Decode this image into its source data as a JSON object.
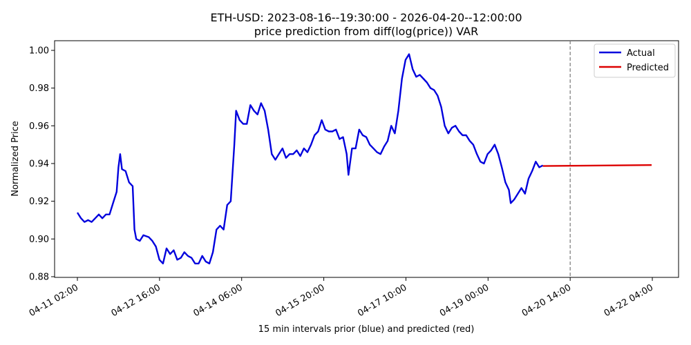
{
  "chart_data": {
    "type": "line",
    "title": "ETH-USD: 2023-08-16--19:30:00 - 2026-04-20--12:00:00",
    "subtitle": "price prediction from diff(log(price)) VAR",
    "xlabel": "15 min intervals prior (blue) and predicted (red)",
    "ylabel": "Normalized Price",
    "ylim": [
      0.88,
      1.0
    ],
    "y_ticks": [
      "0.88",
      "0.90",
      "0.92",
      "0.94",
      "0.96",
      "0.98",
      "1.00"
    ],
    "x_ticks": [
      "04-11 02:00",
      "04-12 16:00",
      "04-14 06:00",
      "04-15 20:00",
      "04-17 10:00",
      "04-19 00:00",
      "04-20 14:00",
      "04-22 04:00"
    ],
    "grid": false,
    "legend_position": "top-right",
    "divider_x": "04-20 14:00",
    "series": [
      {
        "name": "Actual",
        "color": "#0000dd",
        "points": [
          [
            0,
            0.914
          ],
          [
            2,
            0.911
          ],
          [
            4,
            0.909
          ],
          [
            6,
            0.91
          ],
          [
            8,
            0.909
          ],
          [
            10,
            0.911
          ],
          [
            12,
            0.913
          ],
          [
            14,
            0.911
          ],
          [
            16,
            0.913
          ],
          [
            18,
            0.913
          ],
          [
            20,
            0.919
          ],
          [
            22,
            0.925
          ],
          [
            23,
            0.938
          ],
          [
            24,
            0.945
          ],
          [
            25,
            0.937
          ],
          [
            27,
            0.936
          ],
          [
            29,
            0.93
          ],
          [
            31,
            0.928
          ],
          [
            32,
            0.905
          ],
          [
            33,
            0.9
          ],
          [
            35,
            0.899
          ],
          [
            37,
            0.902
          ],
          [
            40,
            0.901
          ],
          [
            42,
            0.899
          ],
          [
            44,
            0.896
          ],
          [
            46,
            0.889
          ],
          [
            48,
            0.887
          ],
          [
            50,
            0.895
          ],
          [
            52,
            0.892
          ],
          [
            54,
            0.894
          ],
          [
            56,
            0.889
          ],
          [
            58,
            0.89
          ],
          [
            60,
            0.893
          ],
          [
            62,
            0.891
          ],
          [
            64,
            0.89
          ],
          [
            66,
            0.887
          ],
          [
            68,
            0.887
          ],
          [
            70,
            0.891
          ],
          [
            72,
            0.888
          ],
          [
            74,
            0.887
          ],
          [
            76,
            0.893
          ],
          [
            78,
            0.905
          ],
          [
            80,
            0.907
          ],
          [
            82,
            0.905
          ],
          [
            84,
            0.918
          ],
          [
            86,
            0.92
          ],
          [
            88,
            0.95
          ],
          [
            89,
            0.968
          ],
          [
            91,
            0.963
          ],
          [
            93,
            0.961
          ],
          [
            95,
            0.961
          ],
          [
            97,
            0.971
          ],
          [
            99,
            0.968
          ],
          [
            101,
            0.966
          ],
          [
            103,
            0.972
          ],
          [
            105,
            0.968
          ],
          [
            107,
            0.958
          ],
          [
            109,
            0.945
          ],
          [
            111,
            0.942
          ],
          [
            113,
            0.945
          ],
          [
            115,
            0.948
          ],
          [
            117,
            0.943
          ],
          [
            119,
            0.945
          ],
          [
            121,
            0.945
          ],
          [
            123,
            0.947
          ],
          [
            125,
            0.944
          ],
          [
            127,
            0.948
          ],
          [
            129,
            0.946
          ],
          [
            131,
            0.95
          ],
          [
            133,
            0.955
          ],
          [
            135,
            0.957
          ],
          [
            137,
            0.963
          ],
          [
            139,
            0.958
          ],
          [
            141,
            0.957
          ],
          [
            143,
            0.957
          ],
          [
            145,
            0.958
          ],
          [
            147,
            0.953
          ],
          [
            149,
            0.954
          ],
          [
            151,
            0.945
          ],
          [
            152,
            0.934
          ],
          [
            154,
            0.948
          ],
          [
            156,
            0.948
          ],
          [
            158,
            0.958
          ],
          [
            160,
            0.955
          ],
          [
            162,
            0.954
          ],
          [
            164,
            0.95
          ],
          [
            166,
            0.948
          ],
          [
            168,
            0.946
          ],
          [
            170,
            0.945
          ],
          [
            172,
            0.949
          ],
          [
            174,
            0.952
          ],
          [
            176,
            0.96
          ],
          [
            178,
            0.956
          ],
          [
            180,
            0.968
          ],
          [
            182,
            0.985
          ],
          [
            184,
            0.995
          ],
          [
            186,
            0.998
          ],
          [
            188,
            0.99
          ],
          [
            190,
            0.986
          ],
          [
            192,
            0.987
          ],
          [
            194,
            0.985
          ],
          [
            196,
            0.983
          ],
          [
            198,
            0.98
          ],
          [
            200,
            0.979
          ],
          [
            202,
            0.976
          ],
          [
            204,
            0.97
          ],
          [
            206,
            0.96
          ],
          [
            208,
            0.956
          ],
          [
            210,
            0.959
          ],
          [
            212,
            0.96
          ],
          [
            214,
            0.957
          ],
          [
            216,
            0.955
          ],
          [
            218,
            0.955
          ],
          [
            220,
            0.952
          ],
          [
            222,
            0.95
          ],
          [
            224,
            0.945
          ],
          [
            226,
            0.941
          ],
          [
            228,
            0.94
          ],
          [
            230,
            0.945
          ],
          [
            232,
            0.947
          ],
          [
            234,
            0.95
          ],
          [
            236,
            0.945
          ],
          [
            238,
            0.938
          ],
          [
            240,
            0.93
          ],
          [
            242,
            0.926
          ],
          [
            243,
            0.919
          ],
          [
            245,
            0.921
          ],
          [
            247,
            0.924
          ],
          [
            249,
            0.927
          ],
          [
            251,
            0.924
          ],
          [
            253,
            0.932
          ],
          [
            255,
            0.936
          ],
          [
            257,
            0.941
          ],
          [
            259,
            0.938
          ],
          [
            261,
            0.939
          ]
        ]
      },
      {
        "name": "Predicted",
        "color": "#dd0000",
        "points": [
          [
            261,
            0.9387
          ],
          [
            322,
            0.9392
          ]
        ]
      }
    ]
  }
}
